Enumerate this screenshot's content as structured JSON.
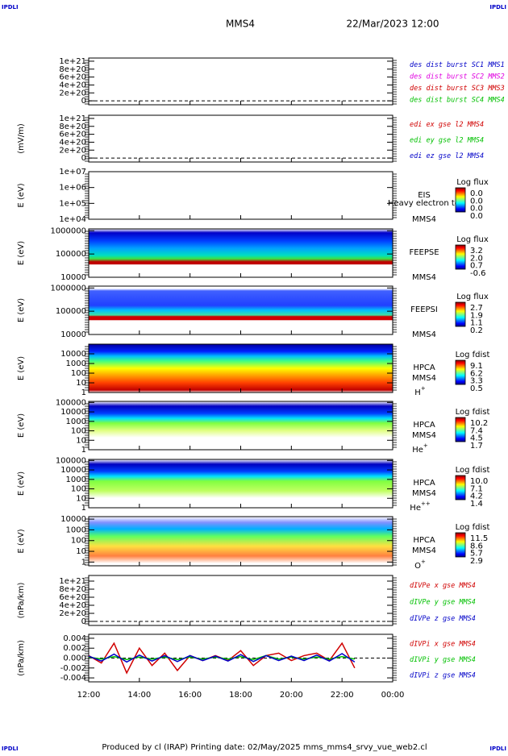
{
  "header": {
    "corner_left": "IPDLI",
    "corner_right": "IPDLI",
    "spacecraft": "MMS4",
    "date": "22/Mar/2023 12:00"
  },
  "footer": {
    "corner_left": "IPDLI",
    "corner_right": "IPDLI",
    "credits": "Produced by cl (IRAP)   Printing date: 02/May/2025   mms_mms4_srvy_vue_web2.cl"
  },
  "chart_data": [
    {
      "type": "line",
      "ylim": [
        -1e+20,
        1.08e+21
      ],
      "yticks": [
        0,
        {
          "value": 2e+20,
          "label": "2e+20"
        },
        {
          "value": 4e+20,
          "label": "4e+20"
        },
        {
          "value": 6e+20,
          "label": "6e+20"
        },
        {
          "value": 8e+20,
          "label": "8e+20"
        },
        {
          "value": 1e+21,
          "label": "1e+21"
        }
      ],
      "series": [
        {
          "name": "des dist burst SC1 MMS1",
          "color": "#0000c8"
        },
        {
          "name": "des dist burst SC2 MMS2",
          "color": "#e000e0"
        },
        {
          "name": "des dist burst SC3 MMS3",
          "color": "#d00000"
        },
        {
          "name": "des dist burst SC4 MMS4",
          "color": "#00c000"
        }
      ]
    },
    {
      "type": "line",
      "ylabel": "(mV/m)",
      "ylim": [
        -1e+20,
        1.08e+21
      ],
      "yticks": [
        0,
        {
          "value": 2e+20,
          "label": "2e+20"
        },
        {
          "value": 4e+20,
          "label": "4e+20"
        },
        {
          "value": 6e+20,
          "label": "6e+20"
        },
        {
          "value": 8e+20,
          "label": "8e+20"
        },
        {
          "value": 1e+21,
          "label": "1e+21"
        }
      ],
      "series": [
        {
          "name": "edi ex gse l2 MMS4",
          "color": "#d00000"
        },
        {
          "name": "edi ey gse l2 MMS4",
          "color": "#00c000"
        },
        {
          "name": "edi ez gse l2 MMS4",
          "color": "#0000c8"
        }
      ]
    },
    {
      "type": "spectrogram",
      "ylabel": "E (eV)",
      "log": true,
      "ylim": [
        10000,
        10000000
      ],
      "yticks": [
        {
          "value": 10000,
          "label": "1e+04"
        },
        {
          "value": 100000,
          "label": "1e+05"
        },
        {
          "value": 1000000,
          "label": "1e+06"
        },
        {
          "value": 10000000,
          "label": "1e+07"
        }
      ],
      "labels": [
        "EIS",
        "MMS4"
      ],
      "note": "Heavy electron to",
      "colorbar": {
        "title": "Log flux",
        "labels": [
          "0.0",
          "0.0",
          "0.0",
          "0.0"
        ]
      }
    },
    {
      "type": "spectrogram",
      "ylabel": "E (eV)",
      "log": true,
      "ylim": [
        10000,
        1200000
      ],
      "yticks": [
        10000,
        100000,
        1000000
      ],
      "labels": [
        "FEEPSE",
        "MMS4"
      ],
      "colorbar": {
        "title": "Log flux",
        "labels": [
          "3.2",
          "2.0",
          "0.7",
          "-0.6"
        ]
      }
    },
    {
      "type": "spectrogram",
      "ylabel": "E (eV)",
      "log": true,
      "ylim": [
        10000,
        1200000
      ],
      "yticks": [
        10000,
        100000,
        1000000
      ],
      "labels": [
        "FEEPSI",
        "MMS4"
      ],
      "colorbar": {
        "title": "Log flux",
        "labels": [
          "2.7",
          "1.9",
          "1.1",
          "0.2"
        ]
      }
    },
    {
      "type": "spectrogram",
      "ylabel": "E (eV)",
      "log": true,
      "ylim": [
        1,
        100000
      ],
      "yticks": [
        1,
        10,
        100,
        1000,
        10000
      ],
      "labels": [
        "HPCA",
        "MMS4"
      ],
      "species": {
        "base": "H",
        "sup": "+"
      },
      "colorbar": {
        "title": "Log fdist",
        "labels": [
          "9.1",
          "6.2",
          "3.3",
          "0.5"
        ]
      }
    },
    {
      "type": "spectrogram",
      "ylabel": "E (eV)",
      "log": true,
      "ylim": [
        1,
        130000
      ],
      "yticks": [
        1,
        10,
        100,
        1000,
        10000,
        100000
      ],
      "labels": [
        "HPCA",
        "MMS4"
      ],
      "species": {
        "base": "He",
        "sup": "+"
      },
      "colorbar": {
        "title": "Log fdist",
        "labels": [
          "10.2",
          "7.4",
          "4.5",
          "1.7"
        ]
      }
    },
    {
      "type": "spectrogram",
      "ylabel": "E (eV)",
      "log": true,
      "ylim": [
        1,
        130000
      ],
      "yticks": [
        1,
        10,
        100,
        1000,
        10000,
        100000
      ],
      "labels": [
        "HPCA",
        "MMS4"
      ],
      "species": {
        "base": "He",
        "sup": "++"
      },
      "colorbar": {
        "title": "Log fdist",
        "labels": [
          "10.0",
          "7.1",
          "4.2",
          "1.4"
        ]
      }
    },
    {
      "type": "spectrogram",
      "ylabel": "E (eV)",
      "log": true,
      "ylim": [
        0.45,
        17000
      ],
      "yticks": [
        1,
        10,
        100,
        1000,
        10000
      ],
      "labels": [
        "HPCA",
        "MMS4"
      ],
      "species": {
        "base": "O",
        "sup": "+"
      },
      "colorbar": {
        "title": "Log fdist",
        "labels": [
          "11.5",
          "8.6",
          "5.7",
          "2.9"
        ]
      }
    },
    {
      "type": "line",
      "ylabel": "(nPa/km)",
      "ylim": [
        -1e+20,
        1.14e+21
      ],
      "yticks": [
        0,
        {
          "value": 2e+20,
          "label": "2e+20"
        },
        {
          "value": 4e+20,
          "label": "4e+20"
        },
        {
          "value": 6e+20,
          "label": "6e+20"
        },
        {
          "value": 8e+20,
          "label": "8e+20"
        },
        {
          "value": 1e+21,
          "label": "1e+21"
        }
      ],
      "series": [
        {
          "name": "dIVPe x gse MMS4",
          "color": "#d00000"
        },
        {
          "name": "dIVPe y gse MMS4",
          "color": "#00c000"
        },
        {
          "name": "dIVPe z gse MMS4",
          "color": "#0000c8"
        }
      ]
    },
    {
      "type": "line",
      "ylabel": "(nPa/km)",
      "ylim": [
        -0.0048,
        0.0048
      ],
      "yticks": [
        -0.004,
        -0.002,
        {
          "value": 0,
          "label": "0.000"
        },
        0.002,
        0.004
      ],
      "xlim": [
        12,
        24
      ],
      "xticks": [
        {
          "value": 12,
          "label": "12:00"
        },
        {
          "value": 14,
          "label": "14:00"
        },
        {
          "value": 16,
          "label": "16:00"
        },
        {
          "value": 18,
          "label": "18:00"
        },
        {
          "value": 20,
          "label": "20:00"
        },
        {
          "value": 22,
          "label": "22:00"
        },
        {
          "value": 24,
          "label": "00:00"
        }
      ],
      "x": [
        12,
        12.5,
        13,
        13.5,
        14,
        14.5,
        15,
        15.5,
        16,
        16.5,
        17,
        17.5,
        18,
        18.5,
        19,
        19.5,
        20,
        20.5,
        21,
        21.5,
        22,
        22.5
      ],
      "series": [
        {
          "name": "dIVPi x gse MMS4",
          "color": "#d00000",
          "values": [
            0.0005,
            -0.001,
            0.003,
            -0.003,
            0.002,
            -0.0015,
            0.001,
            -0.0025,
            0.0005,
            -0.0005,
            0.0005,
            -0.0005,
            0.0015,
            -0.0015,
            0.0005,
            0.001,
            -0.0005,
            0.0005,
            0.001,
            -0.0005,
            0.003,
            -0.002
          ]
        },
        {
          "name": "dIVPi y gse MMS4",
          "color": "#00c000",
          "values": [
            0.0002,
            -0.0002,
            0.0003,
            -0.0003,
            0.0002,
            -0.0002,
            0.0002,
            -0.0003,
            0.0002,
            -0.0002,
            0.0002,
            -0.0002,
            0.0003,
            -0.0003,
            0.0005,
            -0.0002,
            0.0002,
            -0.0002,
            0.0002,
            -0.0002,
            0.0003,
            -0.0002
          ]
        },
        {
          "name": "dIVPi z gse MMS4",
          "color": "#0000c8",
          "values": [
            0.0004,
            -0.0006,
            0.0008,
            -0.0008,
            0.0006,
            -0.0006,
            0.0005,
            -0.0007,
            0.0005,
            -0.0005,
            0.0004,
            -0.0006,
            0.0007,
            -0.0007,
            0.0005,
            -0.0005,
            0.0004,
            -0.0005,
            0.0006,
            -0.0006,
            0.0009,
            -0.0008
          ]
        }
      ]
    }
  ]
}
